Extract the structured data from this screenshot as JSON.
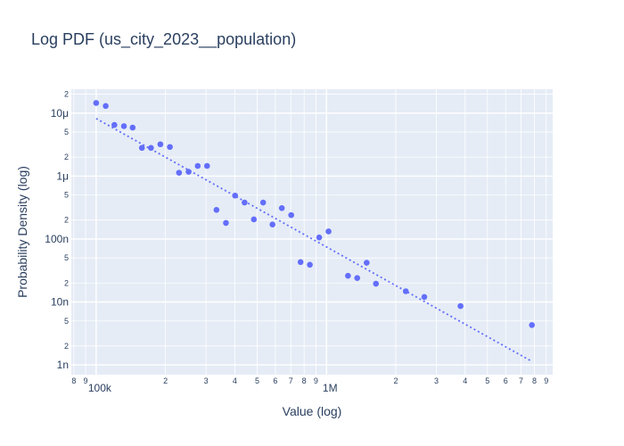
{
  "chart_data": {
    "type": "scatter",
    "title": "Log PDF (us_city_2023__population)",
    "xlabel": "Value (log)",
    "ylabel": "Probability Density (log)",
    "x_scale": "log",
    "y_scale": "log",
    "xlim": [
      78000,
      9600000
    ],
    "ylim": [
      7e-10,
      2.4e-05
    ],
    "grid": true,
    "legend": "none",
    "colors": {
      "points": "#636efa",
      "fit": "#636efa",
      "plot_bg": "#e5ecf6",
      "grid": "#ffffff",
      "text": "#2a3f5f"
    },
    "x_major_ticks": [
      {
        "value": 100000,
        "label": "100k"
      },
      {
        "value": 1000000,
        "label": "1M"
      }
    ],
    "x_minor_ticks": [
      {
        "value": 80000,
        "label": "8"
      },
      {
        "value": 90000,
        "label": "9"
      },
      {
        "value": 200000,
        "label": "2"
      },
      {
        "value": 300000,
        "label": "3"
      },
      {
        "value": 400000,
        "label": "4"
      },
      {
        "value": 500000,
        "label": "5"
      },
      {
        "value": 600000,
        "label": "6"
      },
      {
        "value": 700000,
        "label": "7"
      },
      {
        "value": 800000,
        "label": "8"
      },
      {
        "value": 900000,
        "label": "9"
      },
      {
        "value": 2000000,
        "label": "2"
      },
      {
        "value": 3000000,
        "label": "3"
      },
      {
        "value": 4000000,
        "label": "4"
      },
      {
        "value": 5000000,
        "label": "5"
      },
      {
        "value": 6000000,
        "label": "6"
      },
      {
        "value": 7000000,
        "label": "7"
      },
      {
        "value": 8000000,
        "label": "8"
      },
      {
        "value": 9000000,
        "label": "9"
      }
    ],
    "y_major_ticks": [
      {
        "value": 1e-09,
        "label": "1n"
      },
      {
        "value": 1e-08,
        "label": "10n"
      },
      {
        "value": 1e-07,
        "label": "100n"
      },
      {
        "value": 1e-06,
        "label": "1μ"
      },
      {
        "value": 1e-05,
        "label": "10μ"
      }
    ],
    "y_minor_ticks": [
      {
        "value": 2e-09,
        "label": "2"
      },
      {
        "value": 5e-09,
        "label": "5"
      },
      {
        "value": 2e-08,
        "label": "2"
      },
      {
        "value": 5e-08,
        "label": "5"
      },
      {
        "value": 2e-07,
        "label": "2"
      },
      {
        "value": 5e-07,
        "label": "5"
      },
      {
        "value": 2e-06,
        "label": "2"
      },
      {
        "value": 5e-06,
        "label": "5"
      },
      {
        "value": 2e-05,
        "label": "2"
      }
    ],
    "series": [
      {
        "mode": "markers",
        "x": [
          100000,
          110000,
          120000,
          132000,
          144000,
          158000,
          173000,
          190000,
          209000,
          229000,
          252000,
          276000,
          303000,
          333000,
          366000,
          401000,
          441000,
          484000,
          531000,
          583000,
          640000,
          703000,
          772000,
          847000,
          930000,
          1021000,
          1240000,
          1360000,
          1495000,
          1640000,
          2210000,
          2660000,
          3820000,
          7800000
        ],
        "y": [
          1.45e-05,
          1.3e-05,
          6.5e-06,
          6.2e-06,
          5.9e-06,
          2.8e-06,
          2.8e-06,
          3.2e-06,
          2.9e-06,
          1.13e-06,
          1.17e-06,
          1.45e-06,
          1.45e-06,
          2.9e-07,
          1.8e-07,
          4.9e-07,
          3.8e-07,
          2.05e-07,
          3.8e-07,
          1.7e-07,
          3.1e-07,
          2.4e-07,
          4.3e-08,
          3.9e-08,
          1.06e-07,
          1.32e-07,
          2.6e-08,
          2.4e-08,
          4.2e-08,
          1.95e-08,
          1.48e-08,
          1.2e-08,
          8.6e-09,
          4.3e-09
        ]
      },
      {
        "mode": "dotted-line",
        "x": [
          100000,
          7750000
        ],
        "y": [
          8.2e-06,
          1.15e-09
        ]
      }
    ]
  }
}
